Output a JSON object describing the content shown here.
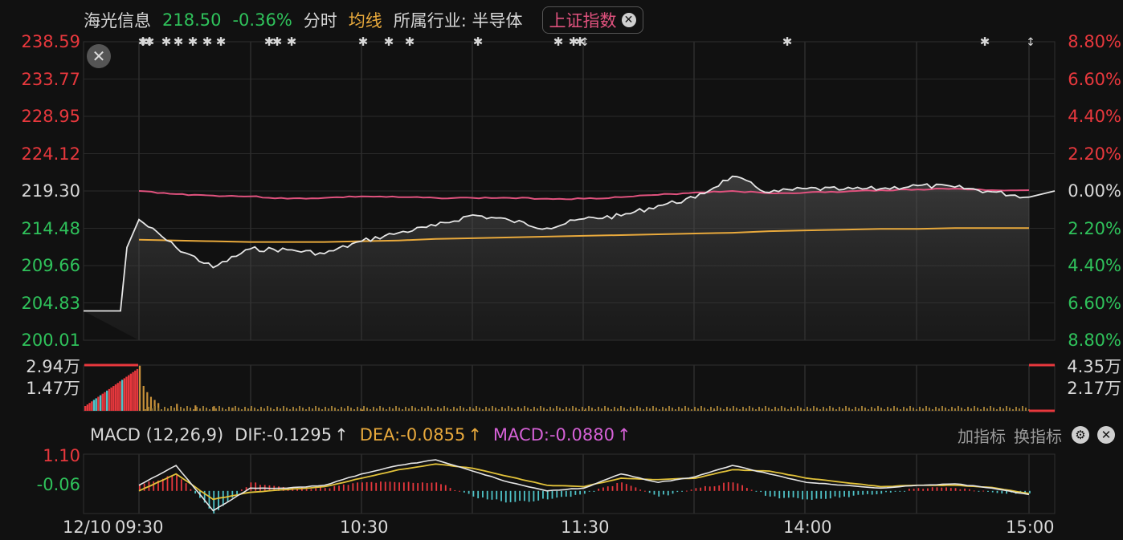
{
  "header": {
    "stock_name": "海光信息",
    "price": "218.50",
    "change": "-0.36%",
    "mode_label": "分时",
    "avg_label": "均线",
    "industry": "所属行业: 半导体",
    "index_button": "上证指数",
    "index_close": "✕"
  },
  "price_axis": {
    "left": [
      "238.59",
      "233.77",
      "228.95",
      "224.12",
      "219.30",
      "214.48",
      "209.66",
      "204.83",
      "200.01"
    ],
    "right": [
      "8.80%",
      "6.60%",
      "4.40%",
      "2.20%",
      "0.00%",
      "2.20%",
      "4.40%",
      "6.60%",
      "8.80%"
    ]
  },
  "volume_axis": {
    "left": [
      "2.94万",
      "1.47万"
    ],
    "right": [
      "4.35万",
      "2.17万"
    ]
  },
  "macd": {
    "title": "MACD (12,26,9)",
    "dif": "DIF:-0.1295",
    "dif_arrow": "↑",
    "dea": "DEA:-0.0855",
    "dea_arrow": "↑",
    "macd": "MACD:-0.0880",
    "macd_arrow": "↑",
    "axis": [
      "1.10",
      "-0.06"
    ]
  },
  "tools": {
    "add_indicator": "加指标",
    "switch_indicator": "换指标",
    "settings_icon": "gear-icon",
    "close_icon": "close-icon"
  },
  "x_labels": [
    "12/10",
    "09:30",
    "10:30",
    "11:30",
    "14:00",
    "15:00"
  ],
  "colors": {
    "price_line": "#e6e6e6",
    "avg_line": "#e8a93c",
    "index_line": "#e0527e",
    "up": "#e8383d",
    "down": "#2fc25b",
    "dea_line": "#e2c23a"
  },
  "chart_data": [
    {
      "type": "line",
      "title": "",
      "ylim": [
        200.01,
        238.59
      ],
      "x": [
        "09:25",
        "09:30",
        "09:40",
        "09:50",
        "10:00",
        "10:10",
        "10:20",
        "10:30",
        "10:40",
        "10:50",
        "11:00",
        "11:10",
        "11:20",
        "11:30",
        "13:10",
        "13:20",
        "13:30",
        "13:40",
        "13:50",
        "14:00",
        "14:10",
        "14:20",
        "14:30",
        "14:40",
        "14:50",
        "15:00"
      ],
      "series": [
        {
          "name": "",
          "values": [
            203.8,
            215.6,
            212.0,
            209.4,
            211.8,
            211.7,
            211.2,
            212.8,
            213.9,
            214.8,
            216.2,
            215.5,
            214.5,
            215.7,
            216.1,
            217.4,
            218.4,
            221.2,
            219.1,
            219.6,
            219.5,
            219.6,
            220.0,
            219.8,
            219.2,
            218.5
          ]
        },
        {
          "name": "均线",
          "values": [
            203.8,
            213.0,
            212.9,
            212.8,
            212.7,
            212.7,
            212.7,
            212.8,
            212.9,
            213.1,
            213.2,
            213.3,
            213.4,
            213.5,
            213.6,
            213.7,
            213.8,
            213.9,
            214.1,
            214.2,
            214.3,
            214.4,
            214.4,
            214.5,
            214.5,
            214.5
          ]
        },
        {
          "name": "上证指数",
          "values": [
            null,
            219.3,
            218.9,
            218.7,
            218.6,
            218.3,
            218.4,
            218.6,
            218.5,
            218.4,
            218.4,
            218.4,
            218.3,
            218.3,
            218.5,
            218.8,
            219.1,
            219.3,
            219.0,
            219.1,
            219.2,
            219.4,
            219.5,
            219.6,
            219.4,
            219.4
          ]
        }
      ]
    },
    {
      "type": "bar",
      "title": "",
      "ylim": [
        0,
        2.94
      ],
      "x": [
        "09:25",
        "09:30",
        "09:31",
        "09:32",
        "09:33",
        "09:34",
        "09:35",
        "09:40",
        "09:45",
        "09:50",
        "09:55",
        "10:00",
        "10:30",
        "11:00",
        "11:30",
        "14:00",
        "15:00"
      ],
      "values": [
        1.6,
        2.9,
        1.6,
        1.2,
        0.9,
        0.7,
        0.5,
        0.45,
        0.35,
        0.3,
        0.2,
        0.12,
        0.08,
        0.07,
        0.06,
        0.06,
        0.05
      ]
    },
    {
      "type": "line",
      "title": "",
      "ylim": [
        -0.8,
        1.3
      ],
      "x": [
        "09:30",
        "09:40",
        "09:50",
        "10:00",
        "10:10",
        "10:20",
        "10:30",
        "10:40",
        "10:50",
        "11:00",
        "11:10",
        "11:20",
        "11:30",
        "13:10",
        "13:20",
        "13:30",
        "13:40",
        "13:50",
        "14:00",
        "14:10",
        "14:20",
        "14:30",
        "14:40",
        "14:50",
        "15:00"
      ],
      "series": [
        {
          "name": "DIF",
          "values": [
            0.2,
            0.9,
            -0.7,
            0.1,
            0.1,
            0.2,
            0.6,
            0.9,
            1.1,
            0.7,
            0.3,
            0.0,
            0.1,
            0.6,
            0.3,
            0.5,
            0.9,
            0.6,
            0.3,
            0.2,
            0.1,
            0.2,
            0.25,
            0.1,
            -0.13
          ]
        },
        {
          "name": "DEA",
          "values": [
            0.0,
            0.6,
            -0.3,
            -0.05,
            0.05,
            0.15,
            0.45,
            0.75,
            0.95,
            0.8,
            0.5,
            0.2,
            0.15,
            0.45,
            0.4,
            0.45,
            0.75,
            0.7,
            0.45,
            0.3,
            0.15,
            0.2,
            0.2,
            0.12,
            -0.09
          ]
        },
        {
          "name": "MACD",
          "values": [
            0.2,
            0.6,
            -0.8,
            0.3,
            0.1,
            0.1,
            0.3,
            0.3,
            0.3,
            -0.2,
            -0.4,
            -0.3,
            -0.1,
            0.3,
            -0.2,
            0.1,
            0.3,
            -0.2,
            -0.3,
            -0.2,
            -0.1,
            0.1,
            0.1,
            -0.05,
            -0.09
          ]
        }
      ]
    }
  ]
}
